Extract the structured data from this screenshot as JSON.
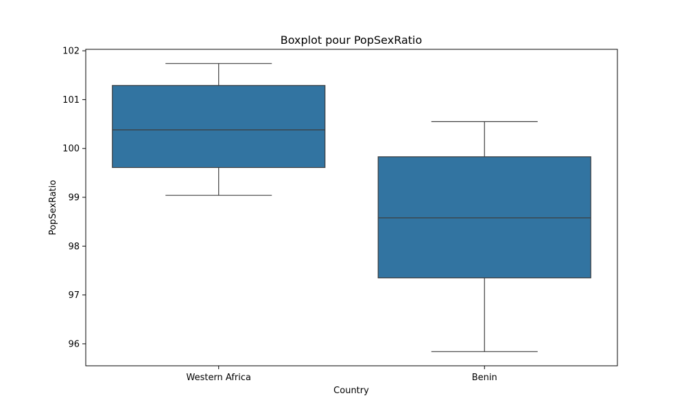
{
  "chart_data": {
    "type": "box",
    "title": "Boxplot pour PopSexRatio",
    "xlabel": "Country",
    "ylabel": "PopSexRatio",
    "ylim": [
      95.55,
      102.03
    ],
    "yticks": [
      96,
      97,
      98,
      99,
      100,
      101,
      102
    ],
    "grid": false,
    "categories": [
      "Western Africa",
      "Benin"
    ],
    "series": [
      {
        "category": "Western Africa",
        "whisker_low": 99.04,
        "q1": 99.61,
        "median": 100.38,
        "q3": 101.29,
        "whisker_high": 101.74
      },
      {
        "category": "Benin",
        "whisker_low": 95.84,
        "q1": 97.35,
        "median": 98.58,
        "q3": 99.83,
        "whisker_high": 100.55
      }
    ],
    "colors": {
      "box_fill": "#3274a1",
      "line": "#3d3d3d",
      "frame": "#000000"
    }
  }
}
